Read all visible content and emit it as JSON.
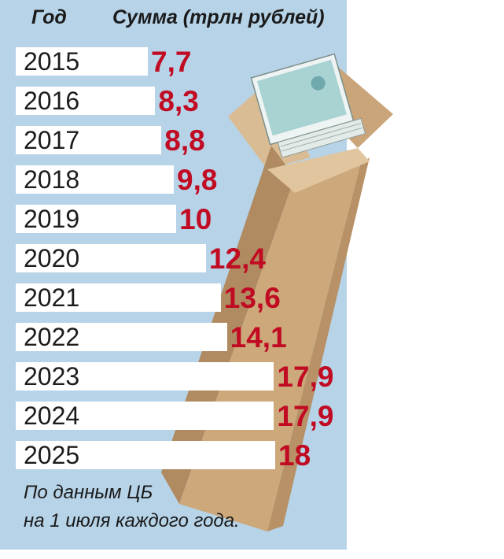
{
  "header": {
    "year_col": "Год",
    "sum_col": "Сумма (трлн рублей)"
  },
  "chart_data": {
    "type": "bar",
    "orientation": "horizontal",
    "categories": [
      "2015",
      "2016",
      "2017",
      "2018",
      "2019",
      "2020",
      "2021",
      "2022",
      "2023",
      "2024",
      "2025"
    ],
    "values": [
      7.7,
      8.3,
      8.8,
      9.8,
      10,
      12.4,
      13.6,
      14.1,
      17.9,
      17.9,
      18
    ],
    "value_labels": [
      "7,7",
      "8,3",
      "8,8",
      "9,8",
      "10",
      "12,4",
      "13,6",
      "14,1",
      "17,9",
      "17,9",
      "18"
    ]
  },
  "source": {
    "line1": "По данным ЦБ",
    "line2": "на 1 июля каждого года."
  },
  "colors": {
    "panel": "#b7d3e8",
    "bar": "#ffffff",
    "value": "#c00b23",
    "box": "#c9a77e"
  },
  "illustration": "cardboard-box-with-banknotes-icon"
}
